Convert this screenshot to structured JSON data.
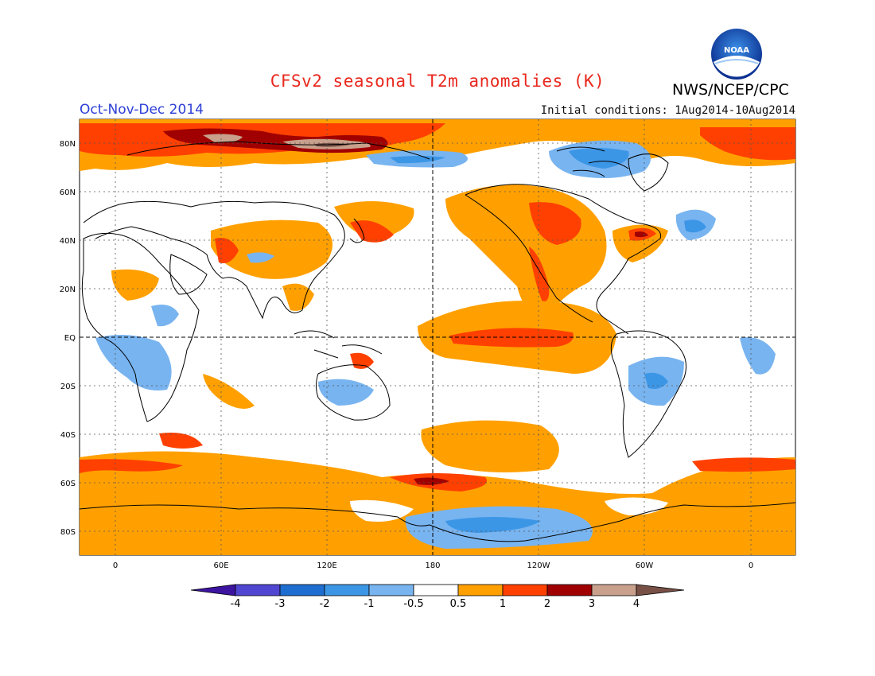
{
  "title": "CFSv2 seasonal T2m anomalies (K)",
  "agency": "NWS/NCEP/CPC",
  "logo_text": "NOAA",
  "season": "Oct-Nov-Dec 2014",
  "initial_conditions": "Initial conditions: 1Aug2014-10Aug2014",
  "lat_labels": [
    "80N",
    "60N",
    "40N",
    "20N",
    "EQ",
    "20S",
    "40S",
    "60S",
    "80S"
  ],
  "lon_labels": [
    "0",
    "60E",
    "120E",
    "180",
    "120W",
    "60W",
    "0"
  ],
  "colorbar": {
    "labels": [
      "-4",
      "-3",
      "-2",
      "-1",
      "-0.5",
      "0.5",
      "1",
      "2",
      "3",
      "4"
    ],
    "colors": [
      "#3c14a0",
      "#5046d2",
      "#1e6ed2",
      "#3c96e6",
      "#78b4f0",
      "#ffffff",
      "#ffa000",
      "#ff4000",
      "#a00000",
      "#c8a08c",
      "#785046"
    ]
  },
  "colors": {
    "land_outline": "#000000",
    "title": "#e8281e",
    "season": "#2d3fd6"
  }
}
